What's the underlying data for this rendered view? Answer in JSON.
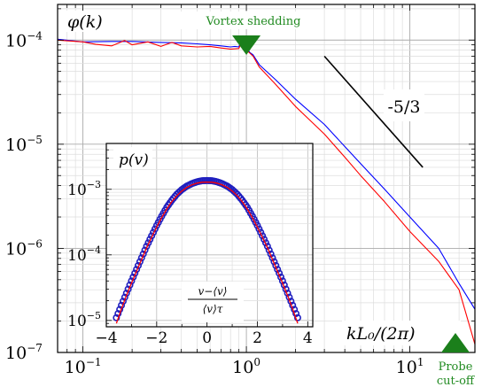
{
  "chart_data": [
    {
      "type": "line",
      "scale": "log-log",
      "title": "",
      "ylabel": "φ(k)",
      "xlabel": "kL₀/(2π)",
      "xlim": [
        0.07,
        25
      ],
      "ylim": [
        1e-07,
        0.00022
      ],
      "x_ticks": [
        {
          "value": 0.1,
          "label": "10",
          "exp": "−1"
        },
        {
          "value": 1,
          "label": "10",
          "exp": "0"
        },
        {
          "value": 10,
          "label": "10",
          "exp": "1"
        }
      ],
      "y_ticks": [
        {
          "value": 1e-07,
          "label": "10",
          "exp": "−7"
        },
        {
          "value": 1e-06,
          "label": "10",
          "exp": "−6"
        },
        {
          "value": 1e-05,
          "label": "10",
          "exp": "−5"
        },
        {
          "value": 0.0001,
          "label": "10",
          "exp": "−4"
        }
      ],
      "grid": true,
      "series": [
        {
          "color": "#0000ff",
          "x": [
            0.07,
            0.1,
            0.15,
            0.2,
            0.3,
            0.4,
            0.5,
            0.6,
            0.7,
            0.8,
            0.85,
            0.9,
            0.95,
            1.0,
            1.05,
            1.1,
            1.2,
            1.5,
            2,
            3,
            4,
            5,
            7,
            10,
            15,
            20,
            25
          ],
          "y": [
            0.000102,
            9.6e-05,
            9.7e-05,
            9.7e-05,
            9.5e-05,
            9.4e-05,
            9.2e-05,
            9e-05,
            8.8e-05,
            8.6e-05,
            8.7e-05,
            8.6e-05,
            0.00011,
            8.6e-05,
            7.6e-05,
            7.2e-05,
            5.8e-05,
            4.2e-05,
            2.7e-05,
            1.55e-05,
            9.5e-06,
            6.5e-06,
            3.7e-06,
            2e-06,
            1e-06,
            4.6e-07,
            2.6e-07
          ]
        },
        {
          "color": "#ff0000",
          "x": [
            0.07,
            0.1,
            0.12,
            0.15,
            0.18,
            0.2,
            0.25,
            0.3,
            0.35,
            0.4,
            0.5,
            0.6,
            0.7,
            0.8,
            0.9,
            0.95,
            1.0,
            1.05,
            1.1,
            1.2,
            1.5,
            2,
            3,
            4,
            5,
            7,
            10,
            15,
            20,
            25
          ],
          "y": [
            0.0001,
            9.6e-05,
            9.1e-05,
            8.8e-05,
            9.9e-05,
            9e-05,
            9.6e-05,
            8.7e-05,
            9.5e-05,
            8.8e-05,
            8.6e-05,
            8.7e-05,
            8.4e-05,
            8.2e-05,
            8.3e-05,
            0.000105,
            8e-05,
            7.5e-05,
            7e-05,
            5.5e-05,
            3.8e-05,
            2.3e-05,
            1.25e-05,
            7.5e-06,
            5e-06,
            2.8e-06,
            1.45e-06,
            7.5e-07,
            4e-07,
            1.2e-07
          ]
        }
      ],
      "slope_line": {
        "label": "-5/3",
        "x": [
          3,
          12
        ],
        "y": [
          7e-05,
          6e-06
        ]
      },
      "annotations": [
        {
          "text": "Vortex shedding",
          "x": 1.0,
          "color": "#228b22"
        },
        {
          "text": "Probe cut-off",
          "lines": [
            "Probe",
            "cut-off"
          ],
          "x": 19,
          "color": "#228b22"
        }
      ]
    },
    {
      "type": "scatter",
      "scale": "semilog-y",
      "title": "",
      "ylabel": "p(v)",
      "xlabel_num": "v−⟨v⟩",
      "xlabel_den": "⟨v⟩τ",
      "xlim": [
        -4,
        4.2
      ],
      "ylim": [
        8e-06,
        0.005
      ],
      "x_ticks": [
        {
          "value": -4,
          "label": "−4"
        },
        {
          "value": -2,
          "label": "−2"
        },
        {
          "value": 0,
          "label": "0"
        },
        {
          "value": 2,
          "label": "2"
        },
        {
          "value": 4,
          "label": "4"
        }
      ],
      "y_ticks": [
        {
          "value": 1e-05,
          "label": "10",
          "exp": "−5"
        },
        {
          "value": 0.0001,
          "label": "10",
          "exp": "−4"
        },
        {
          "value": 0.001,
          "label": "10",
          "exp": "−3"
        }
      ],
      "grid": true,
      "series": [
        {
          "color": "#1f1fbf",
          "marker": "circle",
          "x": [
            -3.6,
            -3.4,
            -3.2,
            -3.0,
            -2.8,
            -2.6,
            -2.4,
            -2.2,
            -2.0,
            -1.8,
            -1.6,
            -1.4,
            -1.2,
            -1.0,
            -0.8,
            -0.6,
            -0.4,
            -0.2,
            0.0,
            0.2,
            0.4,
            0.6,
            0.8,
            1.0,
            1.2,
            1.4,
            1.6,
            1.8,
            2.0,
            2.2,
            2.4,
            2.6,
            2.8,
            3.0,
            3.2,
            3.4,
            3.6
          ],
          "y": [
            1.1e-05,
            1.7e-05,
            2.6e-05,
            4e-05,
            6e-05,
            9e-05,
            0.000135,
            0.000195,
            0.00028,
            0.00039,
            0.00053,
            0.00068,
            0.00084,
            0.00099,
            0.00112,
            0.00122,
            0.0013,
            0.00135,
            0.00136,
            0.00135,
            0.0013,
            0.00122,
            0.00112,
            0.00099,
            0.00084,
            0.00068,
            0.00053,
            0.00039,
            0.00028,
            0.000195,
            0.000135,
            9e-05,
            6e-05,
            4e-05,
            2.6e-05,
            1.7e-05,
            1.1e-05
          ]
        },
        {
          "color": "#ff0000",
          "marker": "line",
          "x": [
            -3.6,
            -3.4,
            -3.2,
            -3.0,
            -2.8,
            -2.6,
            -2.4,
            -2.2,
            -2.0,
            -1.8,
            -1.6,
            -1.4,
            -1.2,
            -1.0,
            -0.8,
            -0.6,
            -0.4,
            -0.2,
            0.0,
            0.2,
            0.4,
            0.6,
            0.8,
            1.0,
            1.2,
            1.4,
            1.6,
            1.8,
            2.0,
            2.2,
            2.4,
            2.6,
            2.8,
            3.0,
            3.2,
            3.4,
            3.6
          ],
          "y": [
            9e-06,
            1.5e-05,
            2.4e-05,
            3.7e-05,
            5.6e-05,
            8.5e-05,
            0.000128,
            0.000185,
            0.000265,
            0.00037,
            0.0005,
            0.00065,
            0.0008,
            0.00094,
            0.00107,
            0.00117,
            0.00124,
            0.00128,
            0.00129,
            0.00128,
            0.00124,
            0.00117,
            0.00107,
            0.00094,
            0.0008,
            0.00065,
            0.0005,
            0.00037,
            0.000265,
            0.000185,
            0.000128,
            8.5e-05,
            5.6e-05,
            3.7e-05,
            2.4e-05,
            1.5e-05,
            9e-06
          ]
        }
      ]
    }
  ]
}
